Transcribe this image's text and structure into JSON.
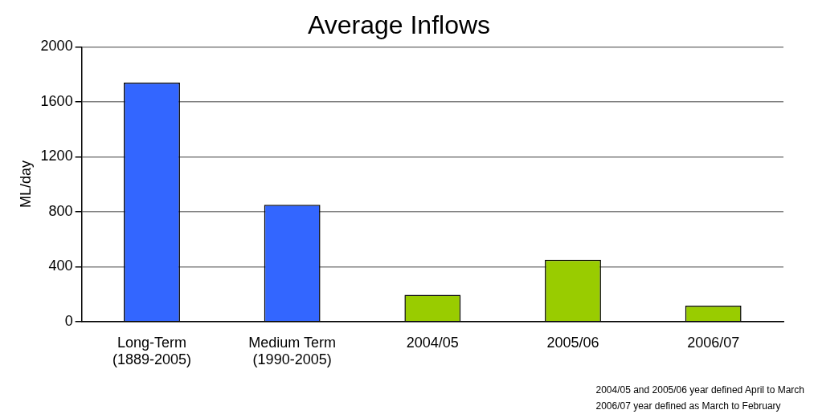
{
  "chart_data": {
    "type": "bar",
    "title": "Average Inflows",
    "ylabel": "ML/day",
    "categories": [
      "Long-Term (1889-2005)",
      "Medium Term (1990-2005)",
      "2004/05",
      "2005/06",
      "2006/07"
    ],
    "values": [
      1740,
      850,
      195,
      450,
      115
    ],
    "colors": [
      "#3366ff",
      "#3366ff",
      "#99cc00",
      "#99cc00",
      "#99cc00"
    ],
    "ylim": [
      0,
      2000
    ],
    "yticks": [
      0,
      400,
      800,
      1200,
      1600,
      2000
    ],
    "grid": "y",
    "legend": false,
    "annotations": [
      "2004/05 and 2005/06 year defined April to March",
      "2006/07 year defined as March to February"
    ]
  }
}
